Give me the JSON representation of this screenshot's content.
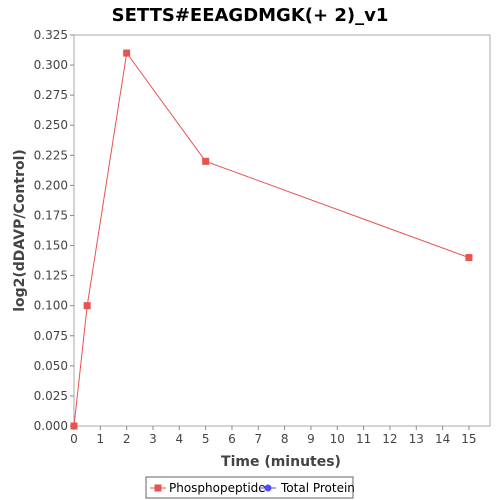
{
  "chart_data": {
    "type": "line",
    "title": "SETTS#EEAGDMGK(+ 2)_v1",
    "xlabel": "Time (minutes)",
    "ylabel": "log2(dDAVP/Control)",
    "xlim": [
      0,
      15.8
    ],
    "ylim": [
      0,
      0.325
    ],
    "x_ticks": [
      "0",
      "1",
      "2",
      "3",
      "4",
      "5",
      "6",
      "7",
      "8",
      "9",
      "10",
      "11",
      "12",
      "13",
      "14",
      "15"
    ],
    "y_ticks": [
      "0.000",
      "0.025",
      "0.050",
      "0.075",
      "0.100",
      "0.125",
      "0.150",
      "0.175",
      "0.200",
      "0.225",
      "0.250",
      "0.275",
      "0.300",
      "0.325"
    ],
    "grid": false,
    "legend_position": "bottom-center",
    "series": [
      {
        "name": "Phosphopeptide",
        "color": "#e8524f",
        "marker": "square",
        "x": [
          0,
          0.5,
          2,
          5,
          15
        ],
        "y": [
          0.0,
          0.1,
          0.31,
          0.22,
          0.14
        ]
      },
      {
        "name": "Total Protein",
        "color": "#4d4dff",
        "marker": "circle",
        "x": [],
        "y": []
      }
    ]
  }
}
